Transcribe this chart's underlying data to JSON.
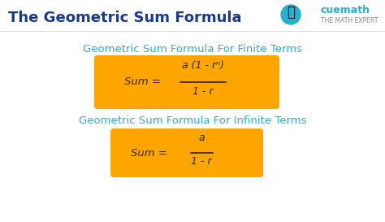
{
  "bg_color": "#ffffff",
  "title": "The Geometric Sum Formula",
  "title_color": "#1a3a8a",
  "title_fontsize": 13,
  "subtitle1": "Geometric Sum Formula For Finite Terms",
  "subtitle2": "Geometric Sum Formula For Infinite Terms",
  "subtitle_color": "#29b0d0",
  "subtitle_fontsize": 9.5,
  "box_color": "#FFA500",
  "formula1_num": "a (1 - rⁿ)",
  "formula1_den": "1 - r",
  "formula2_num": "a",
  "formula2_den": "1 - r",
  "formula_color": "#2a2a00",
  "formula_fontsize": 9.5,
  "cuemath_color": "#29b0d0",
  "mathexpert_color": "#888888"
}
